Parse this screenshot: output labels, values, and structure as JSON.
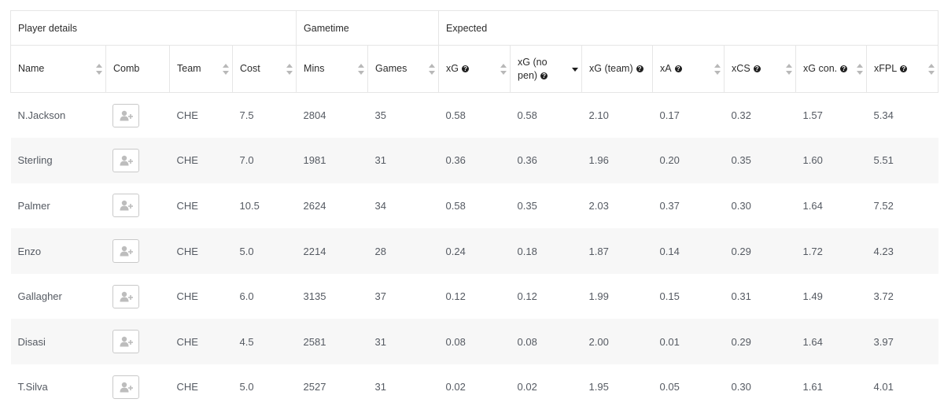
{
  "groups": [
    "Player details",
    "Gametime",
    "Expected"
  ],
  "columns": [
    {
      "label": "Name",
      "info": false,
      "sort": true
    },
    {
      "label": "Comb",
      "info": false,
      "sort": false
    },
    {
      "label": "Team",
      "info": false,
      "sort": true
    },
    {
      "label": "Cost",
      "info": false,
      "sort": true
    },
    {
      "label": "Mins",
      "info": false,
      "sort": true
    },
    {
      "label": "Games",
      "info": false,
      "sort": true
    },
    {
      "label": "xG",
      "info": true,
      "sort": true
    },
    {
      "label": "xG (no pen)",
      "info": true,
      "sort": true,
      "active": true
    },
    {
      "label": "xG (team)",
      "info": true,
      "sort": false
    },
    {
      "label": "xA",
      "info": true,
      "sort": true
    },
    {
      "label": "xCS",
      "info": true,
      "sort": true
    },
    {
      "label": "xG con.",
      "info": true,
      "sort": true
    },
    {
      "label": "xFPL",
      "info": true,
      "sort": true
    }
  ],
  "info_glyph": "?",
  "rows": [
    {
      "name": "N.Jackson",
      "team": "CHE",
      "cost": "7.5",
      "mins": "2804",
      "games": "35",
      "xg": "0.58",
      "xg_no_pen": "0.58",
      "xg_team": "2.10",
      "xa": "0.17",
      "xcs": "0.32",
      "xg_con": "1.57",
      "xfpl": "5.34"
    },
    {
      "name": "Sterling",
      "team": "CHE",
      "cost": "7.0",
      "mins": "1981",
      "games": "31",
      "xg": "0.36",
      "xg_no_pen": "0.36",
      "xg_team": "1.96",
      "xa": "0.20",
      "xcs": "0.35",
      "xg_con": "1.60",
      "xfpl": "5.51"
    },
    {
      "name": "Palmer",
      "team": "CHE",
      "cost": "10.5",
      "mins": "2624",
      "games": "34",
      "xg": "0.58",
      "xg_no_pen": "0.35",
      "xg_team": "2.03",
      "xa": "0.37",
      "xcs": "0.30",
      "xg_con": "1.64",
      "xfpl": "7.52"
    },
    {
      "name": "Enzo",
      "team": "CHE",
      "cost": "5.0",
      "mins": "2214",
      "games": "28",
      "xg": "0.24",
      "xg_no_pen": "0.18",
      "xg_team": "1.87",
      "xa": "0.14",
      "xcs": "0.29",
      "xg_con": "1.72",
      "xfpl": "4.23"
    },
    {
      "name": "Gallagher",
      "team": "CHE",
      "cost": "6.0",
      "mins": "3135",
      "games": "37",
      "xg": "0.12",
      "xg_no_pen": "0.12",
      "xg_team": "1.99",
      "xa": "0.15",
      "xcs": "0.31",
      "xg_con": "1.49",
      "xfpl": "3.72"
    },
    {
      "name": "Disasi",
      "team": "CHE",
      "cost": "4.5",
      "mins": "2581",
      "games": "31",
      "xg": "0.08",
      "xg_no_pen": "0.08",
      "xg_team": "2.00",
      "xa": "0.01",
      "xcs": "0.29",
      "xg_con": "1.64",
      "xfpl": "3.97"
    },
    {
      "name": "T.Silva",
      "team": "CHE",
      "cost": "5.0",
      "mins": "2527",
      "games": "31",
      "xg": "0.02",
      "xg_no_pen": "0.02",
      "xg_team": "1.95",
      "xa": "0.05",
      "xcs": "0.30",
      "xg_con": "1.61",
      "xfpl": "4.01"
    }
  ],
  "compare_icon": "add-player-icon"
}
